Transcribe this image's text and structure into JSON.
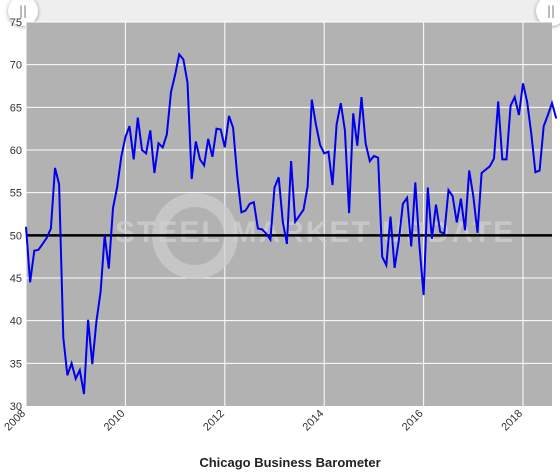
{
  "navigator": {
    "left_handle": "||",
    "right_handle": "||"
  },
  "watermark": "STEEL MARKET UPDATE",
  "colors": {
    "plot_bg": "#b2b2b2",
    "line": "#0000ee",
    "reference_line": "#000000",
    "grid": "#ffffff"
  },
  "chart_data": {
    "type": "line",
    "title": "Chicago Business Barometer",
    "xlabel": "",
    "ylabel": "",
    "xlim": [
      2008.0,
      2018.583
    ],
    "ylim": [
      30,
      75
    ],
    "grid": true,
    "y_ticks": [
      30,
      35,
      40,
      45,
      50,
      55,
      60,
      65,
      70,
      75
    ],
    "x_ticks": [
      2008,
      2010,
      2012,
      2014,
      2016,
      2018
    ],
    "reference_line": 50,
    "series": [
      {
        "start": "2008-01",
        "frequency": "monthly",
        "values": [
          51.0,
          44.5,
          48.2,
          48.3,
          49.0,
          49.7,
          50.8,
          57.9,
          56.0,
          38.0,
          33.6,
          35.0,
          33.2,
          34.2,
          31.4,
          40.1,
          34.9,
          39.9,
          43.4,
          50.0,
          46.1,
          53.2,
          55.6,
          59.2,
          61.5,
          62.8,
          58.9,
          63.8,
          60.0,
          59.6,
          62.3,
          57.3,
          60.8,
          60.3,
          61.8,
          66.8,
          68.8,
          71.2,
          70.6,
          67.9,
          56.6,
          61.0,
          58.9,
          58.2,
          61.3,
          59.2,
          62.5,
          62.4,
          60.3,
          64.0,
          62.6,
          57.0,
          52.7,
          52.9,
          53.7,
          53.9,
          50.8,
          50.7,
          50.2,
          49.5,
          55.6,
          56.8,
          51.6,
          49.0,
          58.7,
          51.6,
          52.3,
          53.0,
          55.7,
          65.9,
          63.0,
          60.6,
          59.6,
          59.8,
          55.9,
          63.0,
          65.5,
          62.3,
          52.6,
          64.3,
          60.5,
          66.2,
          60.8,
          58.7,
          59.3,
          59.1,
          47.5,
          46.5,
          52.2,
          46.2,
          49.4,
          53.7,
          54.4,
          48.7,
          56.2,
          48.7,
          43.0,
          55.6,
          49.6,
          53.6,
          50.4,
          50.2,
          55.3,
          54.6,
          51.5,
          54.3,
          50.6,
          57.6,
          54.6,
          50.3,
          57.3,
          57.7,
          58.1,
          59.0,
          65.7,
          58.9,
          58.9,
          65.2,
          66.2,
          64.1,
          67.8,
          65.6,
          61.9,
          57.4,
          57.6,
          62.8,
          64.1,
          65.5,
          63.7
        ]
      }
    ]
  }
}
